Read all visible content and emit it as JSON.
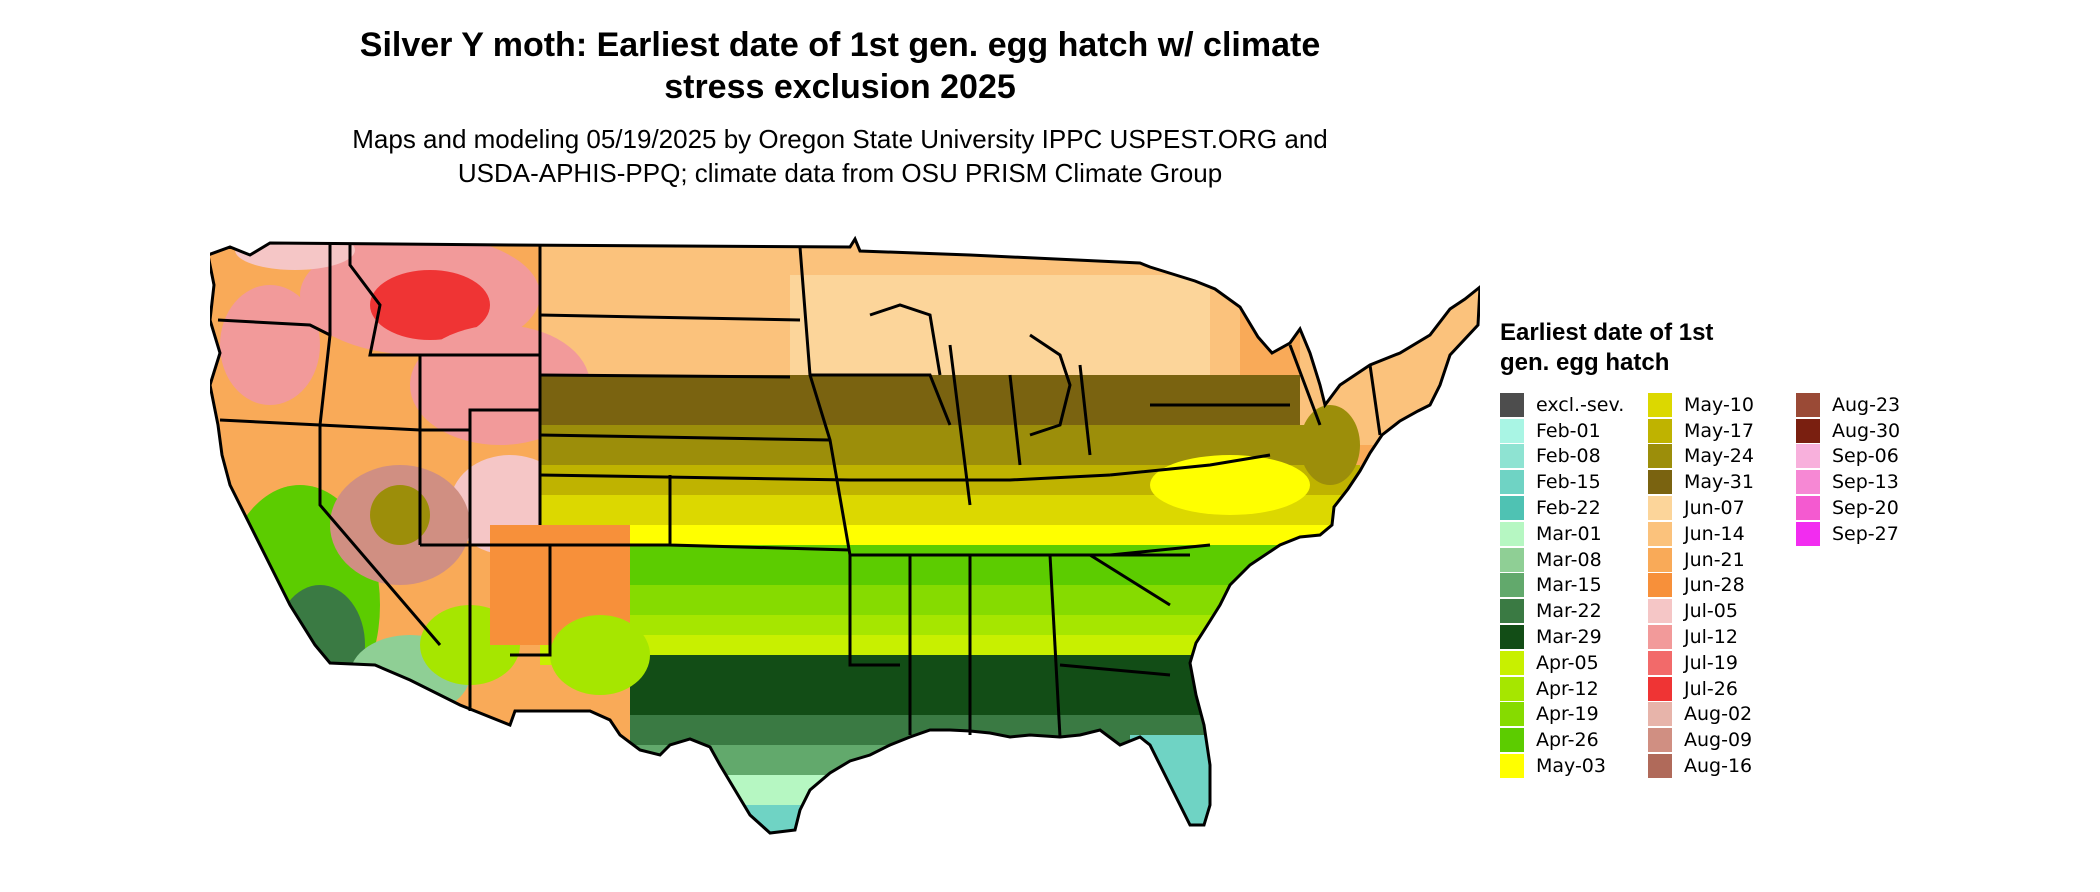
{
  "header": {
    "title_line1": "Silver Y moth: Earliest date of 1st gen. egg hatch w/ climate",
    "title_line2": "stress exclusion 2025",
    "subtitle_line1": "Maps and modeling 05/19/2025 by Oregon State University IPPC USPEST.ORG and",
    "subtitle_line2": "USDA-APHIS-PPQ; climate data from OSU PRISM Climate Group"
  },
  "legend": {
    "title": "Earliest date of 1st gen. egg hatch",
    "columns": [
      [
        {
          "label": "excl.-sev.",
          "color": "#4d4d4d"
        },
        {
          "label": "Feb-01",
          "color": "#a9f5e4"
        },
        {
          "label": "Feb-08",
          "color": "#8ee3d2"
        },
        {
          "label": "Feb-15",
          "color": "#6fd3c4"
        },
        {
          "label": "Feb-22",
          "color": "#4fc2b3"
        },
        {
          "label": "Mar-01",
          "color": "#b6f7c2"
        },
        {
          "label": "Mar-08",
          "color": "#8fcf95"
        },
        {
          "label": "Mar-15",
          "color": "#62a96c"
        },
        {
          "label": "Mar-22",
          "color": "#3a7a43"
        },
        {
          "label": "Mar-29",
          "color": "#124d16"
        },
        {
          "label": "Apr-05",
          "color": "#c8f000"
        },
        {
          "label": "Apr-12",
          "color": "#a6e600"
        },
        {
          "label": "Apr-19",
          "color": "#86db00"
        },
        {
          "label": "Apr-26",
          "color": "#5ccc00"
        },
        {
          "label": "May-03",
          "color": "#ffff00"
        }
      ],
      [
        {
          "label": "May-10",
          "color": "#dcd800"
        },
        {
          "label": "May-17",
          "color": "#bfb300"
        },
        {
          "label": "May-24",
          "color": "#9c8e0a"
        },
        {
          "label": "May-31",
          "color": "#7a6310"
        },
        {
          "label": "Jun-07",
          "color": "#fcd59a"
        },
        {
          "label": "Jun-14",
          "color": "#fbc27c"
        },
        {
          "label": "Jun-21",
          "color": "#f9aa58"
        },
        {
          "label": "Jun-28",
          "color": "#f7903a"
        },
        {
          "label": "Jul-05",
          "color": "#f5c6c6"
        },
        {
          "label": "Jul-12",
          "color": "#f29a9a"
        },
        {
          "label": "Jul-19",
          "color": "#f26a6a"
        },
        {
          "label": "Jul-26",
          "color": "#ef3434"
        },
        {
          "label": "Aug-02",
          "color": "#e7b4aa"
        },
        {
          "label": "Aug-09",
          "color": "#d08f82"
        },
        {
          "label": "Aug-16",
          "color": "#b06a5a"
        }
      ],
      [
        {
          "label": "Aug-23",
          "color": "#9a4a36"
        },
        {
          "label": "Aug-30",
          "color": "#7a1f10"
        },
        {
          "label": "Sep-06",
          "color": "#f8b0dc"
        },
        {
          "label": "Sep-13",
          "color": "#f688d4"
        },
        {
          "label": "Sep-20",
          "color": "#f45ad0"
        },
        {
          "label": "Sep-27",
          "color": "#f22cf0"
        }
      ]
    ]
  }
}
